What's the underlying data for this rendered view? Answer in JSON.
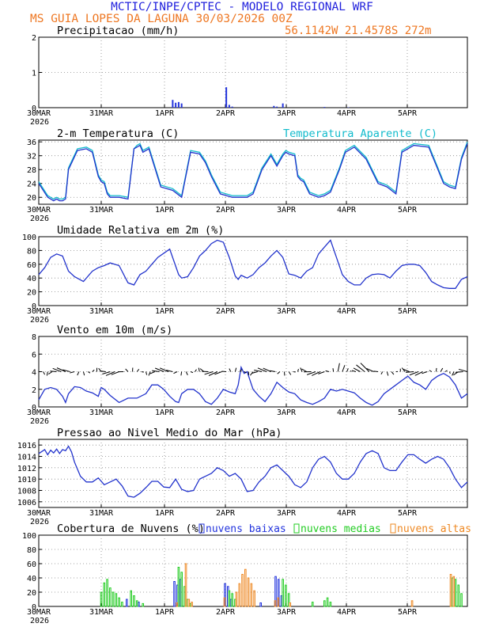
{
  "header": {
    "line1": "MCTIC/INPE/CPTEC - MODELO REGIONAL WRF",
    "line2": "MS GUIA LOPES DA LAGUNA    30/03/2026 00Z",
    "coords": "56.1142W 21.4578S 272m",
    "line1_color": "#2222dd",
    "line2_color": "#ee7722"
  },
  "x_axis": {
    "ticks": [
      "30MAR",
      "31MAR",
      "1APR",
      "2APR",
      "3APR",
      "4APR",
      "5APR"
    ],
    "year": "2026",
    "range_hours": [
      0,
      144
    ]
  },
  "chart_data": [
    {
      "type": "bar",
      "title": "Precipitacao (mm/h)",
      "ylim": [
        0,
        2
      ],
      "yticks": [
        "0",
        "1",
        "2"
      ],
      "color": "#2233dd",
      "points": [
        [
          45,
          0.22
        ],
        [
          46,
          0.14
        ],
        [
          47,
          0.16
        ],
        [
          48,
          0.12
        ],
        [
          63,
          0.58
        ],
        [
          64,
          0.08
        ],
        [
          65,
          0.03
        ],
        [
          79,
          0.05
        ],
        [
          80,
          0.03
        ],
        [
          82,
          0.12
        ],
        [
          96,
          0.02
        ],
        [
          104,
          0.01
        ]
      ]
    },
    {
      "type": "line",
      "title": "2-m Temperatura (C)",
      "legend": "Temperatura Aparente (C)",
      "ylim": [
        18,
        36.5
      ],
      "yticks": [
        "20",
        "24",
        "28",
        "32",
        "36"
      ],
      "series": [
        {
          "name": "Temperatura (C)",
          "color": "#2233cc",
          "x": [
            0,
            3,
            5,
            6,
            7,
            8,
            9,
            10,
            13,
            16,
            18,
            20,
            21,
            22,
            23,
            24,
            27,
            30,
            32,
            33,
            34,
            35,
            37,
            41,
            45,
            48,
            51,
            54,
            56,
            58,
            61,
            65,
            68,
            70,
            72,
            75,
            78,
            80,
            82,
            83,
            84,
            86,
            87,
            88,
            89,
            91,
            94,
            96,
            98,
            101,
            103,
            106,
            110,
            114,
            117,
            120,
            122,
            126,
            131,
            136,
            138,
            140,
            142,
            144
          ],
          "y": [
            24,
            20,
            19,
            19.5,
            19,
            19,
            19.5,
            28,
            33.5,
            34,
            33,
            26,
            24.5,
            24,
            21,
            20,
            20,
            19.5,
            34,
            34.5,
            35,
            33,
            34,
            23,
            22,
            20,
            33,
            32.5,
            30,
            26,
            21,
            20,
            20,
            20,
            21,
            28,
            32,
            29,
            32,
            33,
            32.5,
            32,
            26,
            25,
            24.5,
            21,
            20,
            20.5,
            21.5,
            28,
            33,
            34.5,
            31,
            24,
            23,
            21,
            33,
            35,
            34.5,
            24,
            23,
            22.5,
            31,
            35.5
          ]
        },
        {
          "name": "Temperatura Aparente (C)",
          "color": "#11bbcc",
          "x": [
            0,
            3,
            5,
            6,
            7,
            8,
            9,
            10,
            13,
            16,
            18,
            20,
            21,
            22,
            23,
            24,
            27,
            30,
            32,
            33,
            34,
            35,
            37,
            41,
            45,
            48,
            51,
            54,
            56,
            58,
            61,
            65,
            68,
            70,
            72,
            75,
            78,
            80,
            82,
            83,
            84,
            86,
            87,
            88,
            89,
            91,
            94,
            96,
            98,
            101,
            103,
            106,
            110,
            114,
            117,
            120,
            122,
            126,
            131,
            136,
            138,
            140,
            142,
            144
          ],
          "y": [
            24.5,
            20.5,
            19.5,
            20,
            19.5,
            19.5,
            20,
            28.5,
            34,
            34.5,
            33.5,
            26.5,
            25,
            24.5,
            21.5,
            20.5,
            20.5,
            20,
            34,
            35,
            35.5,
            33.5,
            34.5,
            23.5,
            22.5,
            20.5,
            33.5,
            33,
            30.5,
            26.5,
            21.5,
            20.5,
            20.5,
            20.5,
            21.5,
            28.5,
            32.5,
            29.5,
            32.5,
            33.5,
            33,
            32.5,
            26.5,
            25.5,
            25,
            21.5,
            20.5,
            21,
            22,
            28.5,
            33.5,
            35,
            31.5,
            24.5,
            23.5,
            21.5,
            33.5,
            35.5,
            35,
            24.5,
            23.5,
            23,
            31.5,
            36
          ]
        }
      ]
    },
    {
      "type": "line",
      "title": "Umidade Relativa em 2m (%)",
      "ylim": [
        0,
        100
      ],
      "yticks": [
        "0",
        "20",
        "40",
        "60",
        "80",
        "100"
      ],
      "series": [
        {
          "name": "Umidade Relativa",
          "color": "#2233cc",
          "x": [
            0,
            2,
            4,
            6,
            8,
            10,
            12,
            15,
            18,
            20,
            22,
            24,
            27,
            30,
            32,
            34,
            36,
            38,
            40,
            44,
            47,
            48,
            50,
            52,
            54,
            56,
            58,
            60,
            62,
            64,
            66,
            67,
            68,
            69,
            70,
            72,
            74,
            76,
            78,
            80,
            82,
            84,
            86,
            88,
            90,
            92,
            94,
            96,
            98,
            100,
            102,
            104,
            106,
            108,
            110,
            112,
            114,
            116,
            118,
            120,
            122,
            124,
            126,
            128,
            130,
            132,
            134,
            136,
            138,
            140,
            142,
            144
          ],
          "y": [
            45,
            55,
            70,
            75,
            72,
            50,
            42,
            35,
            50,
            55,
            58,
            62,
            58,
            33,
            30,
            45,
            50,
            60,
            70,
            82,
            45,
            40,
            42,
            55,
            72,
            80,
            90,
            95,
            92,
            70,
            43,
            38,
            44,
            42,
            40,
            45,
            55,
            62,
            72,
            80,
            70,
            46,
            44,
            40,
            50,
            55,
            75,
            85,
            95,
            70,
            45,
            35,
            30,
            30,
            40,
            45,
            46,
            45,
            40,
            50,
            58,
            60,
            60,
            58,
            48,
            35,
            30,
            26,
            25,
            25,
            38,
            42
          ]
        }
      ]
    },
    {
      "type": "line",
      "title": "Vento em 10m (m/s)",
      "ylim": [
        0,
        8
      ],
      "yticks": [
        "0",
        "2",
        "4",
        "6",
        "8"
      ],
      "series": [
        {
          "name": "Vento em 10m",
          "color": "#2233cc",
          "x": [
            0,
            2,
            4,
            6,
            8,
            9,
            10,
            12,
            14,
            16,
            18,
            20,
            21,
            22,
            24,
            27,
            30,
            33,
            36,
            38,
            40,
            42,
            44,
            46,
            47,
            48,
            50,
            52,
            54,
            56,
            58,
            60,
            62,
            64,
            66,
            67,
            68,
            69,
            70,
            71,
            72,
            74,
            76,
            78,
            80,
            82,
            84,
            86,
            88,
            90,
            92,
            94,
            96,
            98,
            100,
            102,
            104,
            106,
            108,
            110,
            112,
            114,
            116,
            118,
            120,
            122,
            124,
            126,
            128,
            130,
            132,
            134,
            136,
            138,
            140,
            142,
            144
          ],
          "y": [
            0.8,
            2,
            2.2,
            2,
            1.2,
            0.5,
            1.5,
            2.3,
            2.2,
            1.8,
            1.6,
            1.2,
            2.2,
            2,
            1.3,
            0.5,
            1,
            1,
            1.5,
            2.5,
            2.5,
            2,
            1.2,
            0.6,
            0.5,
            1.5,
            2,
            2,
            1.5,
            0.6,
            0.3,
            1,
            2,
            1.7,
            1.5,
            2.5,
            4.5,
            3.8,
            4,
            3,
            2,
            1.2,
            0.6,
            1.5,
            2.8,
            2.2,
            1.7,
            1.5,
            0.8,
            0.5,
            0.3,
            0.6,
            1,
            2,
            1.8,
            2,
            1.8,
            1.6,
            1,
            0.5,
            0.2,
            0.6,
            1.5,
            2,
            2.5,
            3,
            3.5,
            2.8,
            2.5,
            2,
            3,
            3.5,
            3.8,
            3.4,
            2.5,
            1,
            1.5
          ]
        }
      ]
    },
    {
      "type": "line",
      "title": "Pressao ao Nivel Medio do Mar (hPa)",
      "ylim": [
        1005,
        1017
      ],
      "yticks": [
        "1006",
        "1008",
        "1010",
        "1012",
        "1014",
        "1016"
      ],
      "series": [
        {
          "name": "Pressao",
          "color": "#2233cc",
          "x": [
            0,
            2,
            3,
            4,
            5,
            6,
            7,
            8,
            9,
            10,
            11,
            12,
            14,
            16,
            18,
            20,
            22,
            24,
            26,
            28,
            30,
            32,
            34,
            36,
            38,
            40,
            42,
            44,
            46,
            48,
            50,
            52,
            54,
            56,
            58,
            60,
            62,
            64,
            66,
            68,
            70,
            72,
            74,
            76,
            78,
            80,
            82,
            84,
            86,
            88,
            90,
            92,
            94,
            96,
            98,
            100,
            102,
            104,
            106,
            108,
            110,
            112,
            114,
            116,
            118,
            120,
            122,
            124,
            126,
            128,
            130,
            132,
            134,
            136,
            138,
            140,
            142,
            144
          ],
          "y": [
            1014.5,
            1015.2,
            1014.3,
            1015.1,
            1014.6,
            1015.3,
            1014.5,
            1015.2,
            1015,
            1015.8,
            1014.8,
            1013,
            1010.5,
            1009.5,
            1009.5,
            1010.2,
            1009,
            1009.5,
            1010,
            1008.8,
            1007,
            1006.8,
            1007.5,
            1008.5,
            1009.6,
            1009.6,
            1008.6,
            1008.5,
            1010,
            1008.2,
            1007.8,
            1008,
            1010,
            1010.5,
            1011,
            1012,
            1011.5,
            1010.5,
            1011,
            1010,
            1007.8,
            1008,
            1009.5,
            1010.5,
            1012,
            1012.5,
            1011.5,
            1010.5,
            1009,
            1008.5,
            1009.5,
            1012,
            1013.5,
            1014,
            1013,
            1011,
            1010,
            1010,
            1011,
            1013,
            1014.5,
            1015,
            1014.5,
            1012,
            1011.5,
            1011.5,
            1013,
            1014.3,
            1014.3,
            1013.5,
            1012.8,
            1013.5,
            1014,
            1013.5,
            1012,
            1010,
            1008.5,
            1009.5
          ]
        }
      ]
    },
    {
      "type": "bar",
      "title": "Cobertura de Nuvens (%)",
      "ylim": [
        0,
        100
      ],
      "yticks": [
        "0",
        "20",
        "40",
        "60",
        "80",
        "100"
      ],
      "series": [
        {
          "name": "nuvens baixas",
          "color": "#2233dd",
          "points": [
            [
              30,
              10
            ],
            [
              34,
              6
            ],
            [
              46,
              35
            ],
            [
              47,
              30
            ],
            [
              48,
              38
            ],
            [
              63,
              32
            ],
            [
              64,
              28
            ],
            [
              65,
              10
            ],
            [
              75,
              5
            ],
            [
              80,
              42
            ],
            [
              81,
              38
            ],
            [
              82,
              15
            ]
          ]
        },
        {
          "name": "nuvens medias",
          "color": "#22cc22",
          "points": [
            [
              21,
              20
            ],
            [
              22,
              33
            ],
            [
              23,
              38
            ],
            [
              24,
              26
            ],
            [
              25,
              20
            ],
            [
              26,
              18
            ],
            [
              27,
              12
            ],
            [
              28,
              6
            ],
            [
              31,
              22
            ],
            [
              32,
              15
            ],
            [
              33,
              8
            ],
            [
              35,
              4
            ],
            [
              47,
              55
            ],
            [
              48,
              48
            ],
            [
              49,
              28
            ],
            [
              50,
              10
            ],
            [
              51,
              4
            ],
            [
              64,
              22
            ],
            [
              65,
              18
            ],
            [
              66,
              10
            ],
            [
              82,
              38
            ],
            [
              83,
              30
            ],
            [
              84,
              18
            ],
            [
              92,
              6
            ],
            [
              96,
              8
            ],
            [
              97,
              12
            ],
            [
              98,
              6
            ],
            [
              139,
              40
            ],
            [
              140,
              38
            ],
            [
              141,
              30
            ],
            [
              142,
              18
            ]
          ]
        },
        {
          "name": "nuvens altas",
          "color": "#ee8822",
          "points": [
            [
              46,
              5
            ],
            [
              49,
              60
            ],
            [
              50,
              10
            ],
            [
              51,
              6
            ],
            [
              62,
              12
            ],
            [
              66,
              20
            ],
            [
              67,
              32
            ],
            [
              68,
              45
            ],
            [
              69,
              52
            ],
            [
              70,
              40
            ],
            [
              71,
              32
            ],
            [
              72,
              22
            ],
            [
              79,
              8
            ],
            [
              80,
              12
            ],
            [
              84,
              5
            ],
            [
              125,
              8
            ],
            [
              138,
              45
            ],
            [
              139,
              42
            ]
          ]
        }
      ]
    }
  ]
}
